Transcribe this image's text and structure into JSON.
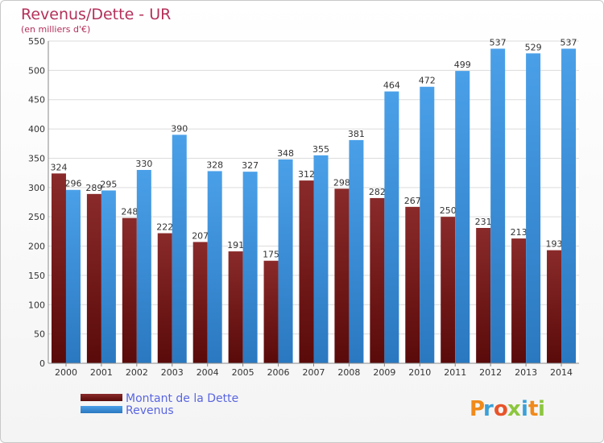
{
  "chart_data": {
    "type": "bar",
    "title": "Revenus/Dette - UR",
    "subtitle": "(en milliers d'€)",
    "categories": [
      "2000",
      "2001",
      "2002",
      "2003",
      "2004",
      "2005",
      "2006",
      "2007",
      "2008",
      "2009",
      "2010",
      "2011",
      "2012",
      "2013",
      "2014"
    ],
    "series": [
      {
        "name": "Montant de la Dette",
        "color": "#7a1a1a",
        "values": [
          324,
          289,
          248,
          222,
          207,
          191,
          175,
          312,
          298,
          282,
          267,
          250,
          231,
          213,
          193
        ]
      },
      {
        "name": "Revenus",
        "color": "#3d8fd8",
        "values": [
          296,
          295,
          330,
          390,
          328,
          327,
          348,
          355,
          381,
          464,
          472,
          499,
          537,
          529,
          537
        ]
      }
    ],
    "ylim": [
      0,
      550
    ],
    "yticks": [
      0,
      50,
      100,
      150,
      200,
      250,
      300,
      350,
      400,
      450,
      500,
      550
    ],
    "grid": true,
    "legend": "bottom-left"
  },
  "brand": {
    "text": "Proxiti"
  }
}
